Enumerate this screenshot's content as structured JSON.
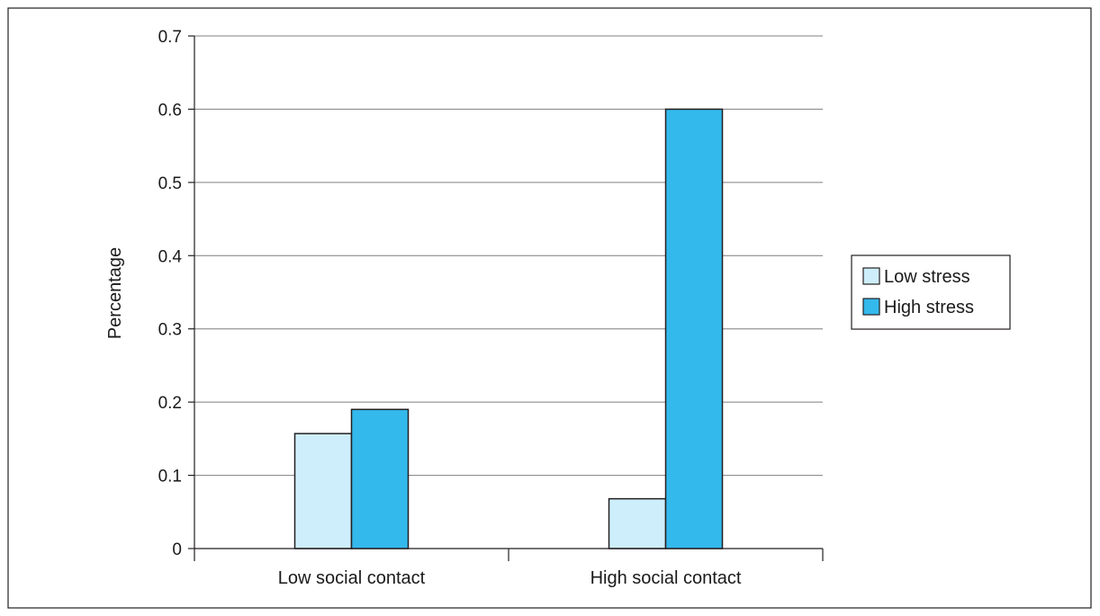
{
  "chart_data": {
    "type": "bar",
    "categories": [
      "Low social contact",
      "High social contact"
    ],
    "series": [
      {
        "name": "Low stress",
        "values": [
          0.157,
          0.068
        ],
        "color": "#cdeefa"
      },
      {
        "name": "High stress",
        "values": [
          0.19,
          0.6
        ],
        "color": "#34b9ec"
      }
    ],
    "title": "",
    "xlabel": "",
    "ylabel": "Percentage",
    "ylim": [
      0,
      0.7
    ],
    "yticks": [
      "0",
      "0.1",
      "0.2",
      "0.3",
      "0.4",
      "0.5",
      "0.6",
      "0.7"
    ],
    "grid": true,
    "legend": "right"
  }
}
